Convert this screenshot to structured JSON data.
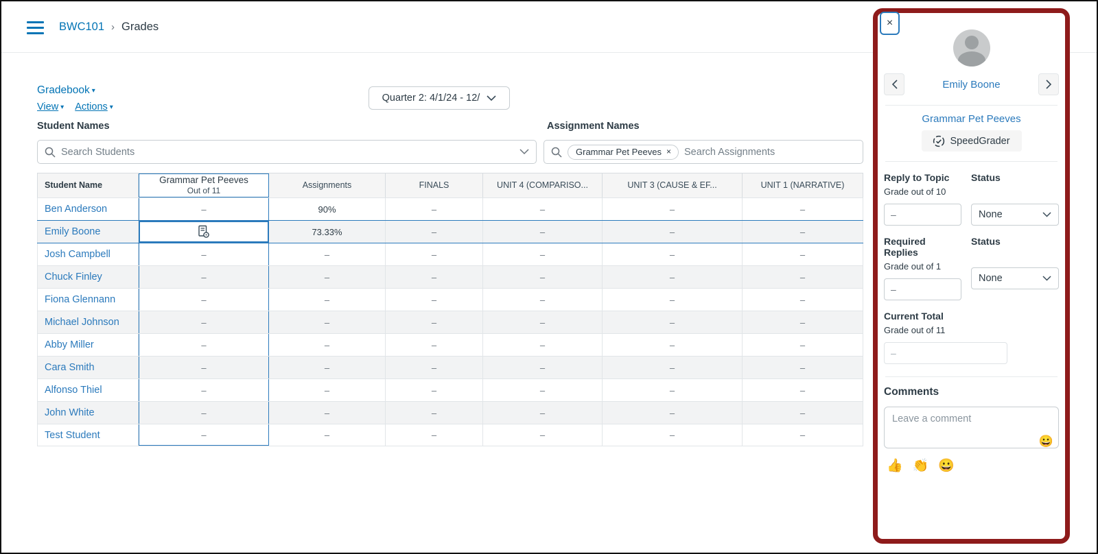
{
  "colors": {
    "link": "#0374B5",
    "selection": "#2B7ABC",
    "annotation": "#8E1B1B",
    "dark_text": "#2D3B45"
  },
  "breadcrumb": {
    "course": "BWC101",
    "separator": "›",
    "current": "Grades"
  },
  "toolbar": {
    "gradebook_menu": "Gradebook",
    "view_menu": "View",
    "actions_menu": "Actions",
    "grading_period": "Quarter 2: 4/1/24 - 12/"
  },
  "filters": {
    "student_label": "Student Names",
    "student_placeholder": "Search Students",
    "assignment_label": "Assignment Names",
    "assignment_placeholder": "Search Assignments",
    "assignment_tag": "Grammar Pet Peeves",
    "tag_remove": "×"
  },
  "grid": {
    "headers": [
      {
        "label": "Student Name"
      },
      {
        "label": "Grammar Pet Peeves",
        "sub": "Out of 11",
        "selected": true
      },
      {
        "label": "Assignments"
      },
      {
        "label": "FINALS"
      },
      {
        "label": "UNIT 4 (COMPARISO..."
      },
      {
        "label": "UNIT 3 (CAUSE & EF..."
      },
      {
        "label": "UNIT 1 (NARRATIVE)"
      }
    ],
    "rows": [
      {
        "name": "Ben Anderson",
        "cells": [
          "–",
          "90%",
          "–",
          "–",
          "–",
          "–"
        ]
      },
      {
        "name": "Emily Boone",
        "cells": [
          "icon:submission-document",
          "73.33%",
          "–",
          "–",
          "–",
          "–"
        ],
        "selected": true
      },
      {
        "name": "Josh Campbell",
        "cells": [
          "–",
          "–",
          "–",
          "–",
          "–",
          "–"
        ]
      },
      {
        "name": "Chuck Finley",
        "cells": [
          "–",
          "–",
          "–",
          "–",
          "–",
          "–"
        ]
      },
      {
        "name": "Fiona Glennann",
        "cells": [
          "–",
          "–",
          "–",
          "–",
          "–",
          "–"
        ]
      },
      {
        "name": "Michael Johnson",
        "cells": [
          "–",
          "–",
          "–",
          "–",
          "–",
          "–"
        ]
      },
      {
        "name": "Abby Miller",
        "cells": [
          "–",
          "–",
          "–",
          "–",
          "–",
          "–"
        ]
      },
      {
        "name": "Cara Smith",
        "cells": [
          "–",
          "–",
          "–",
          "–",
          "–",
          "–"
        ]
      },
      {
        "name": "Alfonso Thiel",
        "cells": [
          "–",
          "–",
          "–",
          "–",
          "–",
          "–"
        ]
      },
      {
        "name": "John White",
        "cells": [
          "–",
          "–",
          "–",
          "–",
          "–",
          "–"
        ]
      },
      {
        "name": "Test Student",
        "cells": [
          "–",
          "–",
          "–",
          "–",
          "–",
          "–"
        ]
      }
    ]
  },
  "tray": {
    "close_label": "×",
    "student_name": "Emily Boone",
    "assignment_name": "Grammar Pet Peeves",
    "speedgrader_label": "SpeedGrader",
    "fields": [
      {
        "label": "Reply to Topic",
        "sub": "Grade out of 10",
        "value": "–",
        "status_label": "Status",
        "status_value": "None"
      },
      {
        "label": "Required Replies",
        "sub": "Grade out of 1",
        "value": "–",
        "status_label": "Status",
        "status_value": "None"
      },
      {
        "label": "Current Total",
        "sub": "Grade out of 11",
        "value": "–",
        "disabled": true
      }
    ],
    "comments": {
      "label": "Comments",
      "placeholder": "Leave a comment",
      "emoji_button": "😀",
      "quick_emojis": [
        "👍",
        "👏",
        "😀"
      ]
    }
  }
}
